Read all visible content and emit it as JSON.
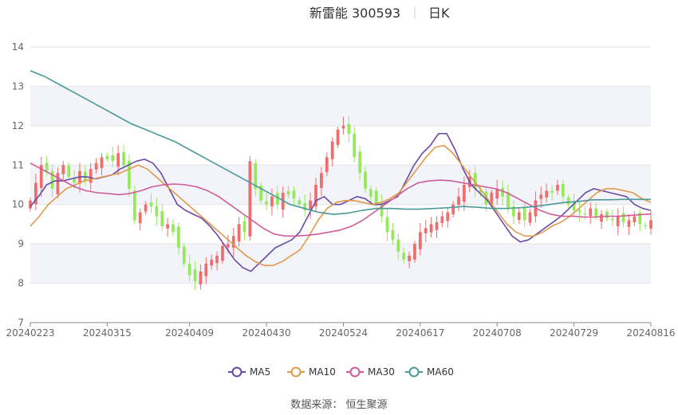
{
  "header": {
    "name_code": "新雷能 300593",
    "period": "日K"
  },
  "footer": {
    "source": "数据来源：  恒生聚源"
  },
  "colors": {
    "up": "#ee6e6e",
    "down": "#97e95c",
    "band": "#f3f4f9",
    "axis": "#8a8a8a",
    "grid": "#e3e3e8"
  },
  "chart_data": {
    "type": "candlestick",
    "ylim": [
      7,
      14
    ],
    "yticks": [
      7,
      8,
      9,
      10,
      11,
      12,
      13,
      14
    ],
    "x_labels": [
      "20240223",
      "20240315",
      "20240409",
      "20240430",
      "20240524",
      "20240617",
      "20240708",
      "20240729",
      "20240816"
    ],
    "x_label_index": [
      0,
      14,
      29,
      43,
      57,
      71,
      85,
      99,
      113
    ],
    "candles_count": 114,
    "candles_close": [
      10.1,
      10.55,
      11.0,
      10.85,
      10.4,
      10.8,
      11.0,
      10.7,
      10.55,
      10.85,
      10.6,
      10.9,
      11.05,
      11.2,
      11.15,
      11.1,
      11.3,
      11.0,
      10.4,
      9.6,
      9.8,
      10.0,
      9.95,
      9.7,
      9.45,
      9.5,
      9.3,
      8.9,
      8.5,
      8.2,
      8.05,
      8.3,
      8.5,
      8.6,
      8.7,
      8.95,
      9.0,
      9.2,
      9.5,
      9.3,
      11.1,
      10.4,
      10.1,
      10.0,
      10.2,
      10.0,
      10.3,
      10.25,
      10.15,
      10.0,
      9.85,
      10.1,
      10.5,
      10.8,
      11.2,
      11.6,
      11.9,
      12.0,
      11.8,
      11.2,
      10.8,
      10.4,
      10.2,
      10.0,
      9.7,
      9.3,
      9.1,
      8.8,
      8.6,
      8.7,
      9.0,
      9.3,
      9.4,
      9.5,
      9.55,
      9.7,
      9.8,
      10.0,
      10.2,
      10.5,
      10.7,
      10.4,
      10.3,
      10.0,
      10.3,
      10.4,
      10.2,
      9.9,
      9.7,
      9.8,
      9.6,
      9.8,
      10.1,
      10.25,
      10.35,
      10.3,
      10.5,
      10.2,
      10.0,
      9.85,
      9.8,
      9.75,
      9.9,
      9.7,
      9.75,
      9.65,
      9.6,
      9.7,
      9.55,
      9.6,
      9.7,
      9.5,
      9.45,
      9.6
    ],
    "series": [
      {
        "name": "MA5",
        "color": "#6a4aa8",
        "values": [
          9.95,
          10.2,
          10.5,
          10.6,
          10.6,
          10.65,
          10.7,
          10.7,
          10.65,
          10.7,
          10.75,
          10.9,
          11.0,
          11.1,
          11.15,
          11.05,
          10.8,
          10.4,
          10.0,
          9.85,
          9.75,
          9.65,
          9.45,
          9.2,
          8.9,
          8.6,
          8.4,
          8.3,
          8.5,
          8.7,
          8.9,
          9.0,
          9.1,
          9.3,
          9.7,
          10.1,
          10.2,
          10.0,
          10.0,
          10.1,
          10.2,
          10.15,
          10.0,
          10.0,
          10.1,
          10.2,
          10.6,
          11.0,
          11.3,
          11.5,
          11.8,
          11.8,
          11.4,
          10.9,
          10.5,
          10.3,
          10.1,
          9.8,
          9.5,
          9.2,
          9.05,
          9.1,
          9.25,
          9.4,
          9.55,
          9.7,
          9.9,
          10.1,
          10.3,
          10.4,
          10.35,
          10.3,
          10.25,
          10.2,
          10.0,
          9.9,
          9.85
        ]
      },
      {
        "name": "MA10",
        "color": "#e0994a",
        "values": [
          9.45,
          9.7,
          10.0,
          10.2,
          10.4,
          10.5,
          10.6,
          10.65,
          10.7,
          10.75,
          10.8,
          10.9,
          11.0,
          10.9,
          10.7,
          10.5,
          10.3,
          10.1,
          9.9,
          9.7,
          9.5,
          9.3,
          9.1,
          8.9,
          8.7,
          8.55,
          8.45,
          8.45,
          8.55,
          8.7,
          8.85,
          9.2,
          9.6,
          9.9,
          10.05,
          10.1,
          10.1,
          10.05,
          10.0,
          10.05,
          10.15,
          10.3,
          10.6,
          10.9,
          11.2,
          11.45,
          11.5,
          11.3,
          11.0,
          10.7,
          10.4,
          10.1,
          9.8,
          9.5,
          9.3,
          9.2,
          9.2,
          9.3,
          9.45,
          9.55,
          9.7,
          9.9,
          10.1,
          10.3,
          10.4,
          10.4,
          10.35,
          10.3,
          10.15,
          10.05
        ]
      },
      {
        "name": "MA30",
        "color": "#d05a9a",
        "values": [
          11.05,
          10.9,
          10.75,
          10.6,
          10.45,
          10.35,
          10.3,
          10.28,
          10.25,
          10.28,
          10.35,
          10.45,
          10.5,
          10.52,
          10.5,
          10.45,
          10.35,
          10.2,
          10.0,
          9.8,
          9.6,
          9.4,
          9.25,
          9.2,
          9.2,
          9.22,
          9.25,
          9.3,
          9.35,
          9.45,
          9.6,
          9.8,
          10.0,
          10.2,
          10.4,
          10.55,
          10.6,
          10.62,
          10.6,
          10.55,
          10.5,
          10.45,
          10.4,
          10.3,
          10.15,
          10.0,
          9.85,
          9.75,
          9.7,
          9.7,
          9.68,
          9.68,
          9.7,
          9.7,
          9.72,
          9.74,
          9.76
        ]
      },
      {
        "name": "MA60",
        "color": "#4b9a9a",
        "values": [
          13.4,
          13.25,
          13.05,
          12.85,
          12.65,
          12.45,
          12.25,
          12.05,
          11.9,
          11.75,
          11.6,
          11.4,
          11.2,
          11.0,
          10.8,
          10.6,
          10.4,
          10.2,
          10.0,
          9.9,
          9.8,
          9.75,
          9.78,
          9.85,
          9.9,
          9.9,
          9.88,
          9.88,
          9.9,
          9.92,
          9.95,
          9.93,
          9.9,
          9.9,
          9.92,
          9.95,
          10.0,
          10.05,
          10.08,
          10.12,
          10.12,
          10.13,
          10.13,
          10.13
        ]
      }
    ],
    "legend": {
      "placement": "bottom-center"
    },
    "grid": true
  }
}
